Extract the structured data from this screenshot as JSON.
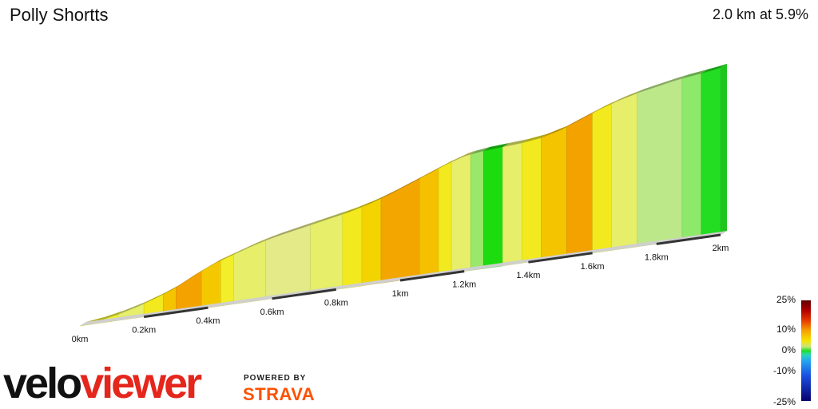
{
  "header": {
    "title": "Polly Shortts",
    "summary": "2.0 km at 5.9%"
  },
  "chart_data": {
    "type": "area",
    "title": "Polly Shortts",
    "xlabel": "",
    "ylabel": "",
    "x_unit": "km",
    "xlim": [
      0,
      2.0
    ],
    "x_ticks": [
      "0km",
      "0.2km",
      "0.4km",
      "0.6km",
      "0.8km",
      "1km",
      "1.2km",
      "1.4km",
      "1.6km",
      "1.8km",
      "2km"
    ],
    "elevation_profile": {
      "x_km": [
        0,
        0.06,
        0.12,
        0.18,
        0.24,
        0.3,
        0.36,
        0.42,
        0.48,
        0.54,
        0.6,
        0.66,
        0.72,
        0.78,
        0.84,
        0.9,
        0.96,
        1.02,
        1.08,
        1.14,
        1.2,
        1.26,
        1.32,
        1.38,
        1.44,
        1.5,
        1.56,
        1.62,
        1.68,
        1.74,
        1.8,
        1.86,
        1.92,
        1.98,
        2.0
      ],
      "relative_height": [
        0,
        2,
        5,
        9,
        14,
        20,
        28,
        35,
        40,
        45,
        49,
        52,
        55,
        58,
        61,
        65,
        70,
        76,
        82,
        88,
        93,
        95,
        96,
        97,
        99,
        103,
        109,
        115,
        120,
        124,
        127,
        130,
        132,
        134,
        135
      ]
    },
    "gradient_segments": [
      {
        "start_km": 0.0,
        "end_km": 0.06,
        "color": "#f3f020"
      },
      {
        "start_km": 0.06,
        "end_km": 0.12,
        "color": "#eef036"
      },
      {
        "start_km": 0.12,
        "end_km": 0.2,
        "color": "#e6ee6a"
      },
      {
        "start_km": 0.2,
        "end_km": 0.26,
        "color": "#f2ea1e"
      },
      {
        "start_km": 0.26,
        "end_km": 0.3,
        "color": "#f4c400"
      },
      {
        "start_km": 0.3,
        "end_km": 0.38,
        "color": "#f3a200"
      },
      {
        "start_km": 0.38,
        "end_km": 0.44,
        "color": "#f4c800"
      },
      {
        "start_km": 0.44,
        "end_km": 0.48,
        "color": "#f2ee2a"
      },
      {
        "start_km": 0.48,
        "end_km": 0.58,
        "color": "#e6ee6a"
      },
      {
        "start_km": 0.58,
        "end_km": 0.72,
        "color": "#e4ea88"
      },
      {
        "start_km": 0.72,
        "end_km": 0.82,
        "color": "#e6ee6a"
      },
      {
        "start_km": 0.82,
        "end_km": 0.88,
        "color": "#f2ea1e"
      },
      {
        "start_km": 0.88,
        "end_km": 0.94,
        "color": "#f4d400"
      },
      {
        "start_km": 0.94,
        "end_km": 1.06,
        "color": "#f3a600"
      },
      {
        "start_km": 1.06,
        "end_km": 1.12,
        "color": "#f4c000"
      },
      {
        "start_km": 1.12,
        "end_km": 1.16,
        "color": "#f2ea1e"
      },
      {
        "start_km": 1.16,
        "end_km": 1.22,
        "color": "#e6ee6a"
      },
      {
        "start_km": 1.22,
        "end_km": 1.26,
        "color": "#9ae86a"
      },
      {
        "start_km": 1.26,
        "end_km": 1.32,
        "color": "#1cdc10"
      },
      {
        "start_km": 1.32,
        "end_km": 1.38,
        "color": "#e6ee6a"
      },
      {
        "start_km": 1.38,
        "end_km": 1.44,
        "color": "#f2ea1e"
      },
      {
        "start_km": 1.44,
        "end_km": 1.52,
        "color": "#f4c400"
      },
      {
        "start_km": 1.52,
        "end_km": 1.6,
        "color": "#f3a200"
      },
      {
        "start_km": 1.6,
        "end_km": 1.66,
        "color": "#f2ea1e"
      },
      {
        "start_km": 1.66,
        "end_km": 1.74,
        "color": "#e6ee6a"
      },
      {
        "start_km": 1.74,
        "end_km": 1.88,
        "color": "#bde88a"
      },
      {
        "start_km": 1.88,
        "end_km": 1.94,
        "color": "#8ee86a"
      },
      {
        "start_km": 1.94,
        "end_km": 2.0,
        "color": "#22dd22"
      }
    ],
    "colorbar": {
      "labels": [
        "25%",
        "10%",
        "0%",
        "-10%",
        "-25%"
      ]
    }
  },
  "branding": {
    "logo_part1": "velo",
    "logo_part2": "viewer",
    "powered_by": "POWERED BY",
    "partner": "STRAVA"
  }
}
